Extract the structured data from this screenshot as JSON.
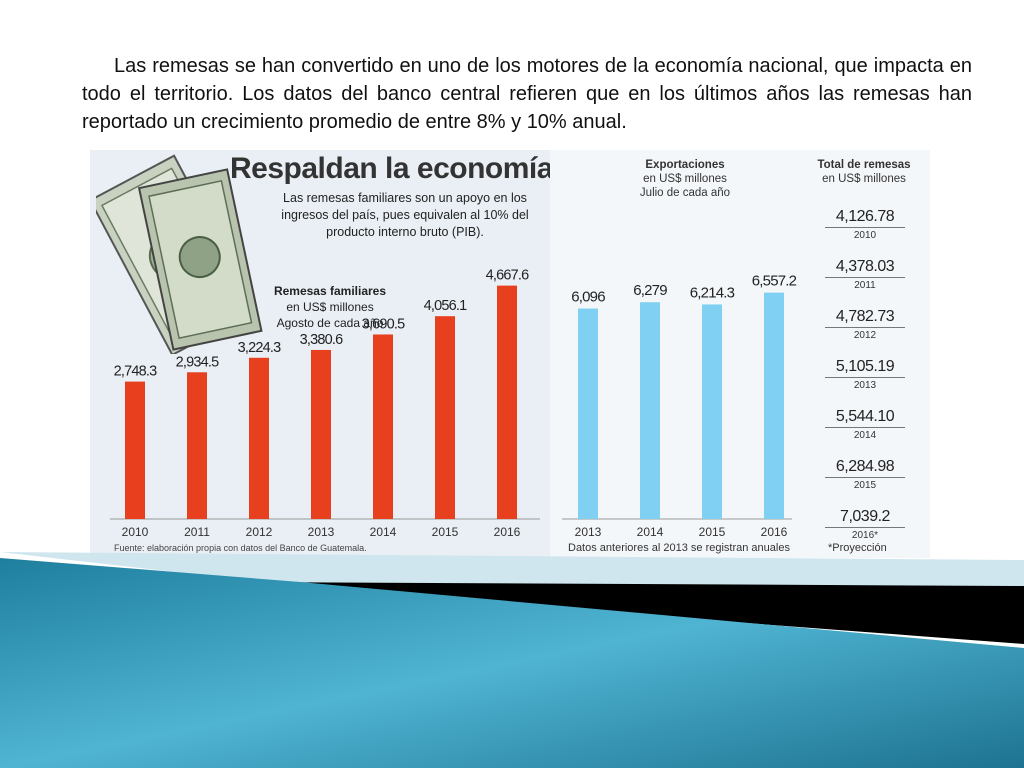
{
  "intro_text": "Las remesas se han convertido en uno de los motores de la economía nacional, que impacta en todo el territorio. Los datos del banco central refieren que en los últimos años las remesas han reportado un crecimiento promedio de entre 8% y 10% anual.",
  "infographic": {
    "headline": "Respaldan la economía",
    "subhead": "Las remesas familiares son un apoyo en los ingresos del país, pues equivalen al 10% del producto interno bruto (PIB).",
    "bill_icon": "dollar-bills-icon",
    "source": "Fuente: elaboración propia con datos del Banco de Guatemala."
  },
  "colors": {
    "remesas_bar": "#e8401f",
    "exportaciones_bar": "#7fd0f3",
    "footer_teal": "#2a8fb0",
    "footer_black": "#000000"
  },
  "chart_data": [
    {
      "type": "bar",
      "title": "Remesas familiares",
      "subtitle": "en US$ millones",
      "note": "Agosto de cada año",
      "categories": [
        "2010",
        "2011",
        "2012",
        "2013",
        "2014",
        "2015",
        "2016"
      ],
      "values": [
        2748.3,
        2934.5,
        3224.3,
        3380.6,
        3690.5,
        4056.1,
        4667.6
      ],
      "value_labels": [
        "2,748.3",
        "2,934.5",
        "3,224.3",
        "3,380.6",
        "3,690.5",
        "4,056.1",
        "4,667.6"
      ],
      "ylim": [
        0,
        6000
      ],
      "grid": false,
      "xlabel": "",
      "ylabel": ""
    },
    {
      "type": "bar",
      "title": "Exportaciones",
      "subtitle": "en US$ millones",
      "note": "Julio de cada año",
      "footnote": "Datos anteriores al 2013 se registran anuales",
      "categories": [
        "2013",
        "2014",
        "2015",
        "2016"
      ],
      "values": [
        6096,
        6279,
        6214.3,
        6557.2
      ],
      "value_labels": [
        "6,096",
        "6,279",
        "6,214.3",
        "6,557.2"
      ],
      "ylim": [
        0,
        8400
      ],
      "grid": false,
      "xlabel": "",
      "ylabel": ""
    },
    {
      "type": "table",
      "title": "Total de remesas",
      "subtitle": "en US$ millones",
      "rows": [
        {
          "value": "4,126.78",
          "year": "2010"
        },
        {
          "value": "4,378.03",
          "year": "2011"
        },
        {
          "value": "4,782.73",
          "year": "2012"
        },
        {
          "value": "5,105.19",
          "year": "2013"
        },
        {
          "value": "5,544.10",
          "year": "2014"
        },
        {
          "value": "6,284.98",
          "year": "2015"
        },
        {
          "value": "7,039.2",
          "year": "2016*"
        }
      ],
      "footnote": "*Proyección"
    }
  ]
}
